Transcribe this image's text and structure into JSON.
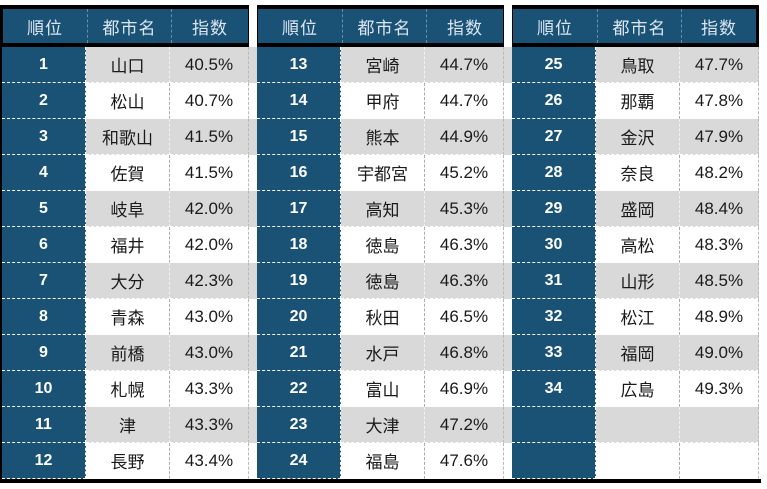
{
  "colors": {
    "header_bg": "#1A5276",
    "rank_bg": "#1A5276",
    "band_gray": "#D9D9D9",
    "band_white": "#FFFFFF",
    "border_black": "#000000",
    "header_text": "#DCE6F1",
    "rank_text": "#FFFFFF",
    "data_text": "#1A1A1A"
  },
  "table": {
    "column_headers": [
      "順位",
      "都市名",
      "指数"
    ],
    "groups": [
      {
        "rows": [
          {
            "rank": "1",
            "city": "山口",
            "index": "40.5%"
          },
          {
            "rank": "2",
            "city": "松山",
            "index": "40.7%"
          },
          {
            "rank": "3",
            "city": "和歌山",
            "index": "41.5%"
          },
          {
            "rank": "4",
            "city": "佐賀",
            "index": "41.5%"
          },
          {
            "rank": "5",
            "city": "岐阜",
            "index": "42.0%"
          },
          {
            "rank": "6",
            "city": "福井",
            "index": "42.0%"
          },
          {
            "rank": "7",
            "city": "大分",
            "index": "42.3%"
          },
          {
            "rank": "8",
            "city": "青森",
            "index": "43.0%"
          },
          {
            "rank": "9",
            "city": "前橋",
            "index": "43.0%"
          },
          {
            "rank": "10",
            "city": "札幌",
            "index": "43.3%"
          },
          {
            "rank": "11",
            "city": "津",
            "index": "43.3%"
          },
          {
            "rank": "12",
            "city": "長野",
            "index": "43.4%"
          }
        ]
      },
      {
        "rows": [
          {
            "rank": "13",
            "city": "宮崎",
            "index": "44.7%"
          },
          {
            "rank": "14",
            "city": "甲府",
            "index": "44.7%"
          },
          {
            "rank": "15",
            "city": "熊本",
            "index": "44.9%"
          },
          {
            "rank": "16",
            "city": "宇都宮",
            "index": "45.2%"
          },
          {
            "rank": "17",
            "city": "高知",
            "index": "45.3%"
          },
          {
            "rank": "18",
            "city": "徳島",
            "index": "46.3%"
          },
          {
            "rank": "19",
            "city": "徳島",
            "index": "46.3%"
          },
          {
            "rank": "20",
            "city": "秋田",
            "index": "46.5%"
          },
          {
            "rank": "21",
            "city": "水戸",
            "index": "46.8%"
          },
          {
            "rank": "22",
            "city": "富山",
            "index": "46.9%"
          },
          {
            "rank": "23",
            "city": "大津",
            "index": "47.2%"
          },
          {
            "rank": "24",
            "city": "福島",
            "index": "47.6%"
          }
        ]
      },
      {
        "rows": [
          {
            "rank": "25",
            "city": "鳥取",
            "index": "47.7%"
          },
          {
            "rank": "26",
            "city": "那覇",
            "index": "47.8%"
          },
          {
            "rank": "27",
            "city": "金沢",
            "index": "47.9%"
          },
          {
            "rank": "28",
            "city": "奈良",
            "index": "48.2%"
          },
          {
            "rank": "29",
            "city": "盛岡",
            "index": "48.4%"
          },
          {
            "rank": "30",
            "city": "高松",
            "index": "48.3%"
          },
          {
            "rank": "31",
            "city": "山形",
            "index": "48.5%"
          },
          {
            "rank": "32",
            "city": "松江",
            "index": "48.9%"
          },
          {
            "rank": "33",
            "city": "福岡",
            "index": "49.0%"
          },
          {
            "rank": "34",
            "city": "広島",
            "index": "49.3%"
          },
          {
            "rank": "",
            "city": "",
            "index": ""
          },
          {
            "rank": "",
            "city": "",
            "index": ""
          }
        ]
      }
    ]
  },
  "chart_data": {
    "type": "table",
    "title": "",
    "columns": [
      "順位",
      "都市名",
      "指数"
    ],
    "rows": [
      [
        1,
        "山口",
        "40.5%"
      ],
      [
        2,
        "松山",
        "40.7%"
      ],
      [
        3,
        "和歌山",
        "41.5%"
      ],
      [
        4,
        "佐賀",
        "41.5%"
      ],
      [
        5,
        "岐阜",
        "42.0%"
      ],
      [
        6,
        "福井",
        "42.0%"
      ],
      [
        7,
        "大分",
        "42.3%"
      ],
      [
        8,
        "青森",
        "43.0%"
      ],
      [
        9,
        "前橋",
        "43.0%"
      ],
      [
        10,
        "札幌",
        "43.3%"
      ],
      [
        11,
        "津",
        "43.3%"
      ],
      [
        12,
        "長野",
        "43.4%"
      ],
      [
        13,
        "宮崎",
        "44.7%"
      ],
      [
        14,
        "甲府",
        "44.7%"
      ],
      [
        15,
        "熊本",
        "44.9%"
      ],
      [
        16,
        "宇都宮",
        "45.2%"
      ],
      [
        17,
        "高知",
        "45.3%"
      ],
      [
        18,
        "徳島",
        "46.3%"
      ],
      [
        19,
        "徳島",
        "46.3%"
      ],
      [
        20,
        "秋田",
        "46.5%"
      ],
      [
        21,
        "水戸",
        "46.8%"
      ],
      [
        22,
        "富山",
        "46.9%"
      ],
      [
        23,
        "大津",
        "47.2%"
      ],
      [
        24,
        "福島",
        "47.6%"
      ],
      [
        25,
        "鳥取",
        "47.7%"
      ],
      [
        26,
        "那覇",
        "47.8%"
      ],
      [
        27,
        "金沢",
        "47.9%"
      ],
      [
        28,
        "奈良",
        "48.2%"
      ],
      [
        29,
        "盛岡",
        "48.4%"
      ],
      [
        30,
        "高松",
        "48.3%"
      ],
      [
        31,
        "山形",
        "48.5%"
      ],
      [
        32,
        "松江",
        "48.9%"
      ],
      [
        33,
        "福岡",
        "49.0%"
      ],
      [
        34,
        "広島",
        "49.3%"
      ]
    ],
    "layout_hint": "3 side-by-side column groups of 12 rows each; rank column dark blue, data rows banded gray/white"
  }
}
